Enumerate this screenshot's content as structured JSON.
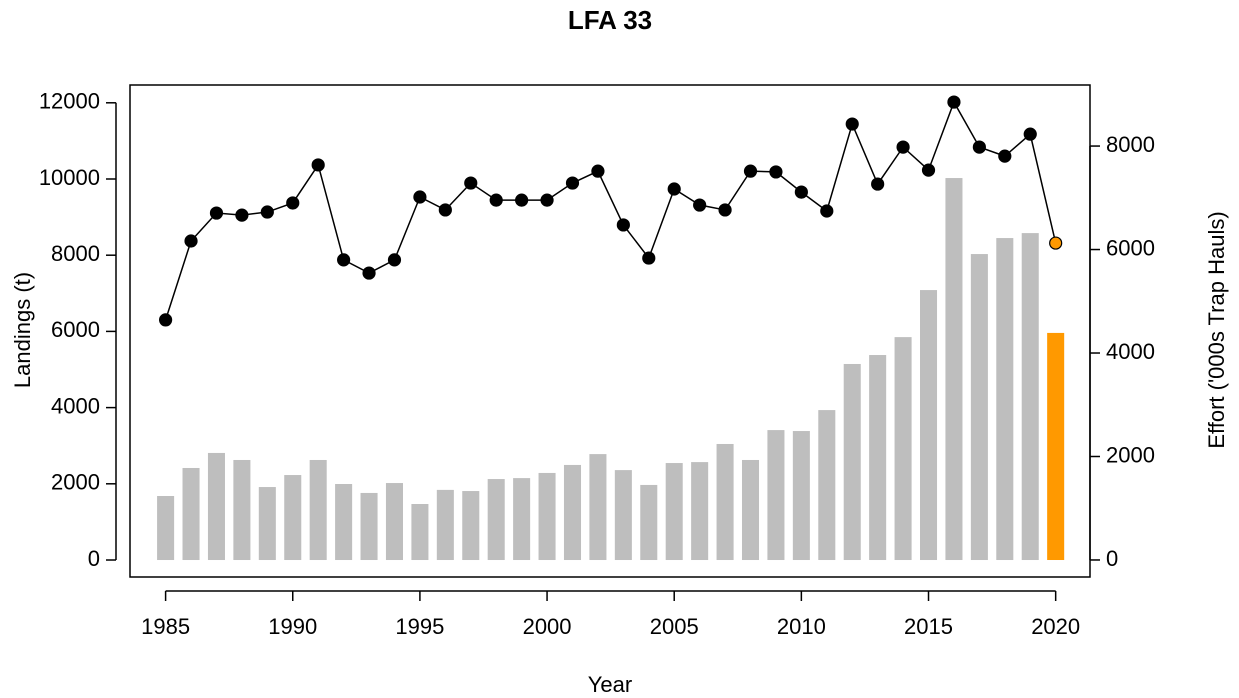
{
  "chart_data": {
    "type": "bar_line",
    "title": "LFA 33",
    "x_label": "Year",
    "y_label": "Landings (t)",
    "y2_label": "Effort ('000s Trap Hauls)",
    "x": [
      1985,
      1986,
      1987,
      1988,
      1989,
      1990,
      1991,
      1992,
      1993,
      1994,
      1995,
      1996,
      1997,
      1998,
      1999,
      2000,
      2001,
      2002,
      2003,
      2004,
      2005,
      2006,
      2007,
      2008,
      2009,
      2010,
      2011,
      2012,
      2013,
      2014,
      2015,
      2016,
      2017,
      2018,
      2019,
      2020
    ],
    "xlim": [
      1983.6,
      2021.35
    ],
    "xticks": [
      1985,
      1990,
      1995,
      2000,
      2005,
      2010,
      2015,
      2020
    ],
    "ylim": [
      -446,
      12467
    ],
    "yticks": [
      0,
      2000,
      4000,
      6000,
      8000,
      10000,
      12000
    ],
    "y2lim": [
      -329,
      9180
    ],
    "y2ticks": [
      0,
      2000,
      4000,
      6000,
      8000
    ],
    "series": [
      {
        "type": "bar",
        "axis": "y",
        "colors": [
          "#bebebe",
          "#bebebe",
          "#bebebe",
          "#bebebe",
          "#bebebe",
          "#bebebe",
          "#bebebe",
          "#bebebe",
          "#bebebe",
          "#bebebe",
          "#bebebe",
          "#bebebe",
          "#bebebe",
          "#bebebe",
          "#bebebe",
          "#bebebe",
          "#bebebe",
          "#bebebe",
          "#bebebe",
          "#bebebe",
          "#bebebe",
          "#bebebe",
          "#bebebe",
          "#bebebe",
          "#bebebe",
          "#bebebe",
          "#bebebe",
          "#bebebe",
          "#bebebe",
          "#bebebe",
          "#bebebe",
          "#bebebe",
          "#bebebe",
          "#bebebe",
          "#bebebe",
          "#ff9900"
        ],
        "values": [
          1680,
          2415,
          2810,
          2625,
          1915,
          2230,
          2625,
          1995,
          1760,
          2020,
          1470,
          1840,
          1810,
          2125,
          2150,
          2285,
          2495,
          2780,
          2360,
          1970,
          2545,
          2570,
          3045,
          2625,
          3410,
          3385,
          3935,
          5145,
          5380,
          5850,
          7085,
          10025,
          8030,
          8450,
          8580,
          5960
        ]
      },
      {
        "type": "line",
        "axis": "y2",
        "colors": [
          "#000000",
          "#000000",
          "#000000",
          "#000000",
          "#000000",
          "#000000",
          "#000000",
          "#000000",
          "#000000",
          "#000000",
          "#000000",
          "#000000",
          "#000000",
          "#000000",
          "#000000",
          "#000000",
          "#000000",
          "#000000",
          "#000000",
          "#000000",
          "#000000",
          "#000000",
          "#000000",
          "#000000",
          "#000000",
          "#000000",
          "#000000",
          "#000000",
          "#000000",
          "#000000",
          "#000000",
          "#000000",
          "#000000",
          "#000000",
          "#000000",
          "#ff9900"
        ],
        "values": [
          4640,
          6165,
          6705,
          6665,
          6725,
          6900,
          7635,
          5800,
          5545,
          5800,
          7015,
          6765,
          7285,
          6955,
          6955,
          6955,
          7285,
          7515,
          6475,
          5835,
          7170,
          6860,
          6765,
          7515,
          7500,
          7110,
          6745,
          8425,
          7265,
          7980,
          7535,
          8850,
          7980,
          7805,
          8230,
          6125
        ]
      }
    ]
  }
}
